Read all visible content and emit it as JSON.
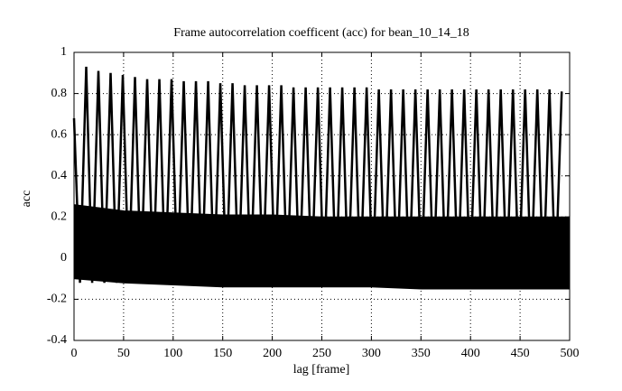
{
  "chart_data": {
    "type": "line",
    "title": "Frame autocorrelation coefficent (acc) for bean_10_14_18",
    "xlabel": "lag [frame]",
    "ylabel": "acc",
    "xlim": [
      0,
      500
    ],
    "ylim": [
      -0.4,
      1
    ],
    "xticks": [
      0,
      50,
      100,
      150,
      200,
      250,
      300,
      350,
      400,
      450,
      500
    ],
    "yticks": [
      -0.4,
      -0.2,
      0,
      0.2,
      0.4,
      0.6,
      0.8,
      1
    ],
    "grid": true,
    "series": [
      {
        "kind": "band",
        "color": "#000000",
        "x": [
          0,
          50,
          100,
          150,
          200,
          250,
          300,
          350,
          400,
          450,
          500
        ],
        "upper": [
          0.26,
          0.23,
          0.22,
          0.21,
          0.21,
          0.2,
          0.2,
          0.2,
          0.2,
          0.2,
          0.2
        ],
        "lower": [
          -0.1,
          -0.12,
          -0.13,
          -0.14,
          -0.14,
          -0.14,
          -0.14,
          -0.15,
          -0.15,
          -0.15,
          -0.15
        ]
      },
      {
        "kind": "line",
        "color": "#000000",
        "x": [
          0,
          6,
          12.3,
          18.3,
          24.6,
          30.6,
          36.9,
          42.9,
          49.2,
          55.2,
          61.5,
          67.5,
          73.8,
          79.8,
          86.1,
          92.1,
          98.4,
          104.4,
          110.7,
          116.7,
          123,
          129,
          135.3,
          141.3,
          147.6,
          153.6,
          159.9,
          165.9,
          172.2,
          178.2,
          184.5,
          190.5,
          196.8,
          202.8,
          209.1,
          215.1,
          221.4,
          227.4,
          233.7,
          239.7,
          246,
          252,
          258.3,
          264.3,
          270.6,
          276.6,
          282.9,
          288.9,
          295.2,
          301.2,
          307.5,
          313.5,
          319.8,
          325.8,
          332.1,
          338.1,
          344.4,
          350.4,
          356.7,
          362.7,
          369,
          375,
          381.3,
          387.3,
          393.6,
          399.6,
          405.9,
          411.9,
          418.2,
          424.2,
          430.5,
          436.5,
          442.8,
          448.8,
          455.1,
          461.1,
          467.4,
          473.4,
          479.7,
          485.7,
          492
        ],
        "values": [
          0.68,
          -0.12,
          0.93,
          -0.12,
          0.91,
          -0.12,
          0.9,
          -0.12,
          0.89,
          -0.12,
          0.88,
          -0.12,
          0.87,
          -0.12,
          0.87,
          -0.12,
          0.87,
          -0.12,
          0.86,
          -0.12,
          0.86,
          -0.12,
          0.86,
          -0.12,
          0.85,
          -0.12,
          0.85,
          -0.12,
          0.84,
          -0.12,
          0.84,
          -0.12,
          0.84,
          -0.12,
          0.84,
          -0.12,
          0.83,
          -0.12,
          0.83,
          -0.12,
          0.83,
          -0.12,
          0.83,
          -0.12,
          0.83,
          -0.12,
          0.83,
          -0.12,
          0.83,
          -0.12,
          0.82,
          -0.12,
          0.82,
          -0.12,
          0.82,
          -0.12,
          0.82,
          -0.12,
          0.82,
          -0.12,
          0.82,
          -0.12,
          0.82,
          -0.12,
          0.82,
          -0.12,
          0.82,
          -0.12,
          0.82,
          -0.12,
          0.82,
          -0.12,
          0.82,
          -0.12,
          0.82,
          -0.12,
          0.82,
          -0.12,
          0.82,
          -0.12,
          0.81
        ]
      }
    ]
  }
}
